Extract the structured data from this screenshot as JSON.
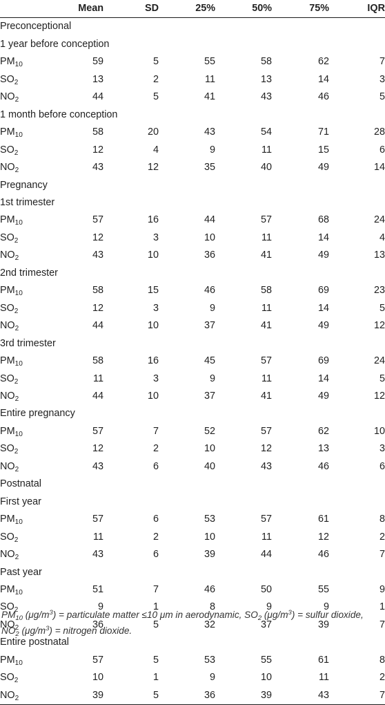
{
  "headers": [
    "",
    "Mean",
    "SD",
    "25%",
    "50%",
    "75%",
    "IQR"
  ],
  "rows": [
    {
      "type": "group",
      "label": "Preconceptional"
    },
    {
      "type": "sub",
      "label": "1 year before conception"
    },
    {
      "type": "data",
      "p": "PM",
      "s": "10",
      "vals": [
        "59",
        "5",
        "55",
        "58",
        "62",
        "7"
      ]
    },
    {
      "type": "data",
      "p": "SO",
      "s": "2",
      "vals": [
        "13",
        "2",
        "11",
        "13",
        "14",
        "3"
      ]
    },
    {
      "type": "data",
      "p": "NO",
      "s": "2",
      "vals": [
        "44",
        "5",
        "41",
        "43",
        "46",
        "5"
      ]
    },
    {
      "type": "sub",
      "label": "1 month before conception"
    },
    {
      "type": "data",
      "p": "PM",
      "s": "10",
      "vals": [
        "58",
        "20",
        "43",
        "54",
        "71",
        "28"
      ]
    },
    {
      "type": "data",
      "p": "SO",
      "s": "2",
      "vals": [
        "12",
        "4",
        "9",
        "11",
        "15",
        "6"
      ]
    },
    {
      "type": "data",
      "p": "NO",
      "s": "2",
      "vals": [
        "43",
        "12",
        "35",
        "40",
        "49",
        "14"
      ]
    },
    {
      "type": "group",
      "label": "Pregnancy"
    },
    {
      "type": "sub",
      "label": "1st trimester"
    },
    {
      "type": "data",
      "p": "PM",
      "s": "10",
      "vals": [
        "57",
        "16",
        "44",
        "57",
        "68",
        "24"
      ]
    },
    {
      "type": "data",
      "p": "SO",
      "s": "2",
      "vals": [
        "12",
        "3",
        "10",
        "11",
        "14",
        "4"
      ]
    },
    {
      "type": "data",
      "p": "NO",
      "s": "2",
      "vals": [
        "43",
        "10",
        "36",
        "41",
        "49",
        "13"
      ]
    },
    {
      "type": "sub",
      "label": "2nd trimester"
    },
    {
      "type": "data",
      "p": "PM",
      "s": "10",
      "vals": [
        "58",
        "15",
        "46",
        "58",
        "69",
        "23"
      ]
    },
    {
      "type": "data",
      "p": "SO",
      "s": "2",
      "vals": [
        "12",
        "3",
        "9",
        "11",
        "14",
        "5"
      ]
    },
    {
      "type": "data",
      "p": "NO",
      "s": "2",
      "vals": [
        "44",
        "10",
        "37",
        "41",
        "49",
        "12"
      ]
    },
    {
      "type": "sub",
      "label": "3rd trimester"
    },
    {
      "type": "data",
      "p": "PM",
      "s": "10",
      "vals": [
        "58",
        "16",
        "45",
        "57",
        "69",
        "24"
      ]
    },
    {
      "type": "data",
      "p": "SO",
      "s": "2",
      "vals": [
        "11",
        "3",
        "9",
        "11",
        "14",
        "5"
      ]
    },
    {
      "type": "data",
      "p": "NO",
      "s": "2",
      "vals": [
        "44",
        "10",
        "37",
        "41",
        "49",
        "12"
      ]
    },
    {
      "type": "sub",
      "label": "Entire pregnancy"
    },
    {
      "type": "data",
      "p": "PM",
      "s": "10",
      "vals": [
        "57",
        "7",
        "52",
        "57",
        "62",
        "10"
      ]
    },
    {
      "type": "data",
      "p": "SO",
      "s": "2",
      "vals": [
        "12",
        "2",
        "10",
        "12",
        "13",
        "3"
      ]
    },
    {
      "type": "data",
      "p": "NO",
      "s": "2",
      "vals": [
        "43",
        "6",
        "40",
        "43",
        "46",
        "6"
      ]
    },
    {
      "type": "group",
      "label": "Postnatal"
    },
    {
      "type": "sub",
      "label": "First year"
    },
    {
      "type": "data",
      "p": "PM",
      "s": "10",
      "vals": [
        "57",
        "6",
        "53",
        "57",
        "61",
        "8"
      ]
    },
    {
      "type": "data",
      "p": "SO",
      "s": "2",
      "vals": [
        "11",
        "2",
        "10",
        "11",
        "12",
        "2"
      ]
    },
    {
      "type": "data",
      "p": "NO",
      "s": "2",
      "vals": [
        "43",
        "6",
        "39",
        "44",
        "46",
        "7"
      ]
    },
    {
      "type": "sub",
      "label": "Past year"
    },
    {
      "type": "data",
      "p": "PM",
      "s": "10",
      "vals": [
        "51",
        "7",
        "46",
        "50",
        "55",
        "9"
      ]
    },
    {
      "type": "data",
      "p": "SO",
      "s": "2",
      "vals": [
        "9",
        "1",
        "8",
        "9",
        "9",
        "1"
      ]
    },
    {
      "type": "data",
      "p": "NO",
      "s": "2",
      "vals": [
        "36",
        "5",
        "32",
        "37",
        "39",
        "7"
      ]
    },
    {
      "type": "sub",
      "label": "Entire postnatal"
    },
    {
      "type": "data",
      "p": "PM",
      "s": "10",
      "vals": [
        "57",
        "5",
        "53",
        "55",
        "61",
        "8"
      ]
    },
    {
      "type": "data",
      "p": "SO",
      "s": "2",
      "vals": [
        "10",
        "1",
        "9",
        "10",
        "11",
        "2"
      ]
    },
    {
      "type": "data",
      "p": "NO",
      "s": "2",
      "vals": [
        "39",
        "5",
        "36",
        "39",
        "43",
        "7"
      ]
    }
  ],
  "footnote": {
    "pm_p": "PM",
    "pm_s": "10",
    "pm_unit_a": " (μg/m",
    "pm_unit_sup": "3",
    "pm_unit_b": ")",
    "pm_def": " = particulate matter ≤10 μm in aerodynamic, ",
    "so_p": "SO",
    "so_s": "2",
    "so_unit_a": " (μg/m",
    "so_unit_sup": "3",
    "so_unit_b": ")",
    "so_def": " = sulfur dioxide,",
    "no_p": "NO",
    "no_s": "2",
    "no_unit_a": " (μg/m",
    "no_unit_sup": "3",
    "no_unit_b": ")",
    "no_def": " = nitrogen dioxide."
  }
}
